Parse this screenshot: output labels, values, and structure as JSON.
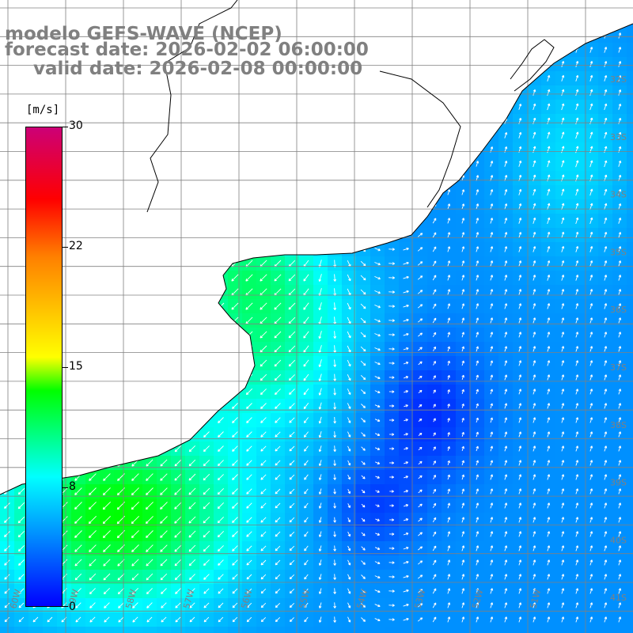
{
  "title": {
    "line1": "modelo GEFS-WAVE (NCEP)",
    "line2": "forecast date: 2026-02-02 06:00:00",
    "line3": "valid date: 2026-02-08 00:00:00"
  },
  "colorbar": {
    "unit": "[m/s]",
    "ticks": [
      "30",
      "22",
      "15",
      "8",
      "0"
    ],
    "range": [
      0,
      30
    ],
    "colors": [
      "#0000ff",
      "#0090ff",
      "#00ffff",
      "#00ff00",
      "#ffff00",
      "#ff8000",
      "#ff0000",
      "#cc0077"
    ]
  },
  "grid": {
    "lat_labels": [
      "32S",
      "33S",
      "34S",
      "35S",
      "36S",
      "37S",
      "38S",
      "39S",
      "40S",
      "41S"
    ],
    "lon_labels": [
      "60W",
      "59W",
      "58W",
      "57W",
      "56W",
      "55W",
      "54W",
      "53W",
      "52W",
      "51W"
    ]
  },
  "colors": {
    "land": "#ffffff",
    "coast": "#000000",
    "grid": "#808080",
    "arrows": "#ffffff",
    "title": "#808080"
  }
}
